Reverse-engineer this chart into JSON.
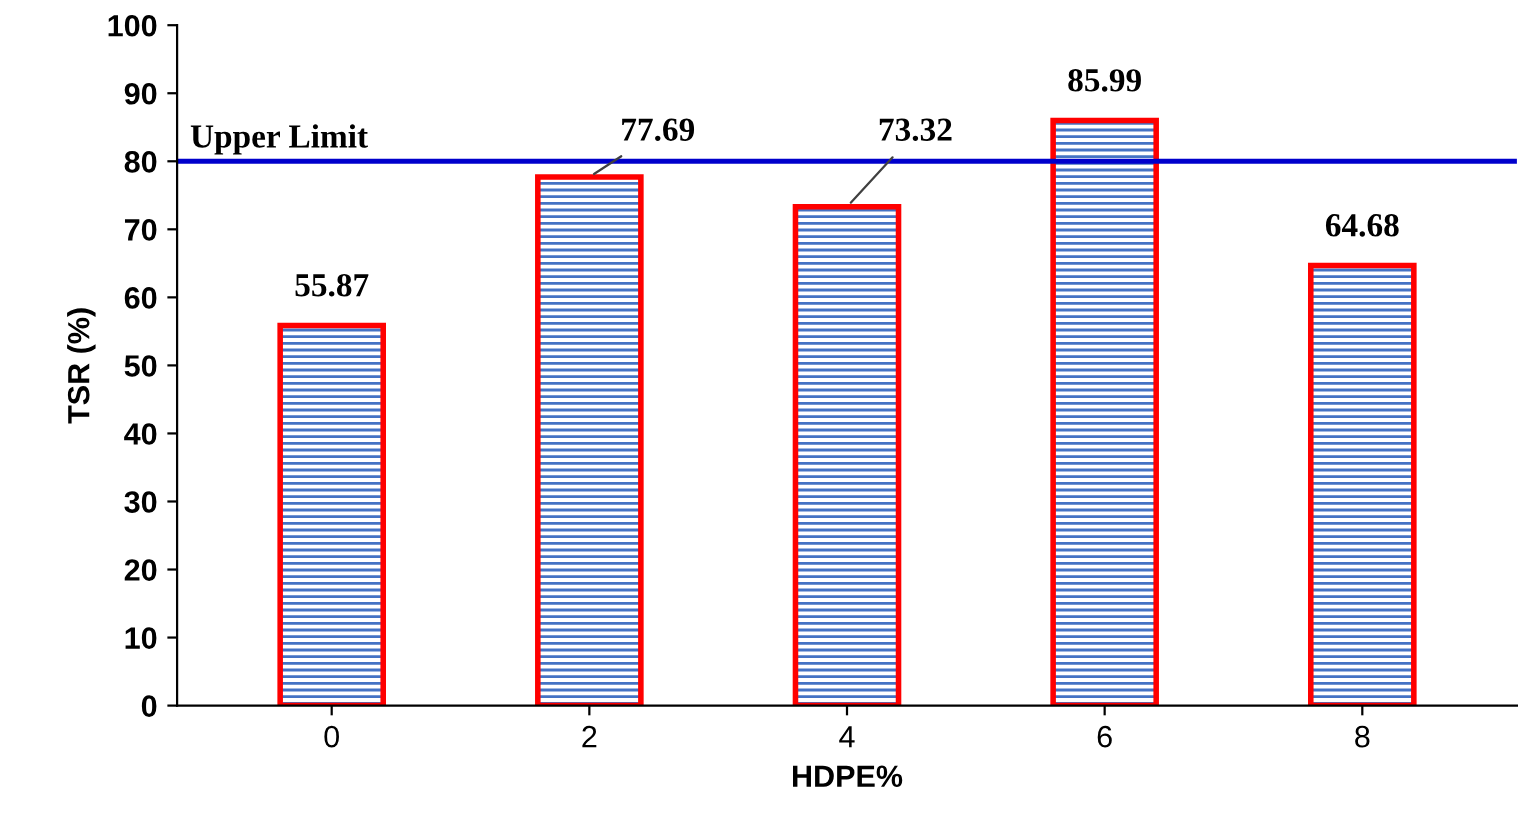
{
  "chart_data": {
    "type": "bar",
    "xlabel": "HDPE%",
    "ylabel": "TSR (%)",
    "categories": [
      "0",
      "2",
      "4",
      "6",
      "8"
    ],
    "series": [
      {
        "color": "#ff0000",
        "values": [
          55.87,
          77.69,
          73.32,
          85.99,
          64.68
        ]
      }
    ],
    "ylim": [
      0,
      100
    ],
    "yticks": [
      0,
      10,
      20,
      30,
      40,
      50,
      60,
      70,
      80,
      90,
      100
    ],
    "ref_lines": [
      {
        "axis": "y",
        "value": 80,
        "label": "Upper Limit",
        "color": "#0000cc"
      }
    ],
    "data_labels": true,
    "grid": false,
    "legend": false
  }
}
